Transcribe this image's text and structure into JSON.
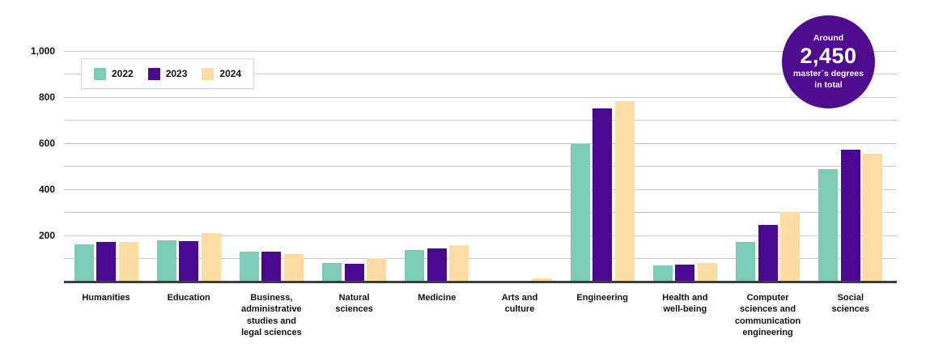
{
  "chart_data": {
    "type": "bar",
    "title": "",
    "xlabel": "",
    "ylabel": "",
    "ylim": [
      0,
      1000
    ],
    "gridline_step": 100,
    "grid": true,
    "legend_position": "top-left",
    "yticks": [
      200,
      400,
      600,
      800,
      1000
    ],
    "ytick_labels": [
      "200",
      "400",
      "600",
      "800",
      "1,000"
    ],
    "categories": [
      "Humanities",
      "Education",
      "Business,\nadministrative\nstudies and\nlegal sciences",
      "Natural\nsciences",
      "Medicine",
      "Arts and\nculture",
      "Engineering",
      "Health and\nwell-being",
      "Computer\nsciences and\ncommunication\nengineering",
      "Social\nsciences"
    ],
    "series": [
      {
        "name": "2022",
        "color": "#7CCCB8",
        "values": [
          160,
          180,
          130,
          80,
          135,
          0,
          595,
          70,
          170,
          488
        ]
      },
      {
        "name": "2023",
        "color": "#4B0991",
        "values": [
          170,
          175,
          128,
          78,
          143,
          0,
          750,
          75,
          245,
          570
        ]
      },
      {
        "name": "2024",
        "color": "#FDDBA3",
        "values": [
          172,
          210,
          120,
          100,
          158,
          15,
          780,
          80,
          300,
          552
        ]
      }
    ]
  },
  "badge": {
    "line1": "Around",
    "value": "2,450",
    "line2": "master´s degrees",
    "line3": "in total",
    "color": "#4F0C8E"
  },
  "colors": {
    "gridline": "#c9c9c9",
    "axis": "#3d3d3d",
    "background": "#ffffff",
    "text": "#111111"
  }
}
